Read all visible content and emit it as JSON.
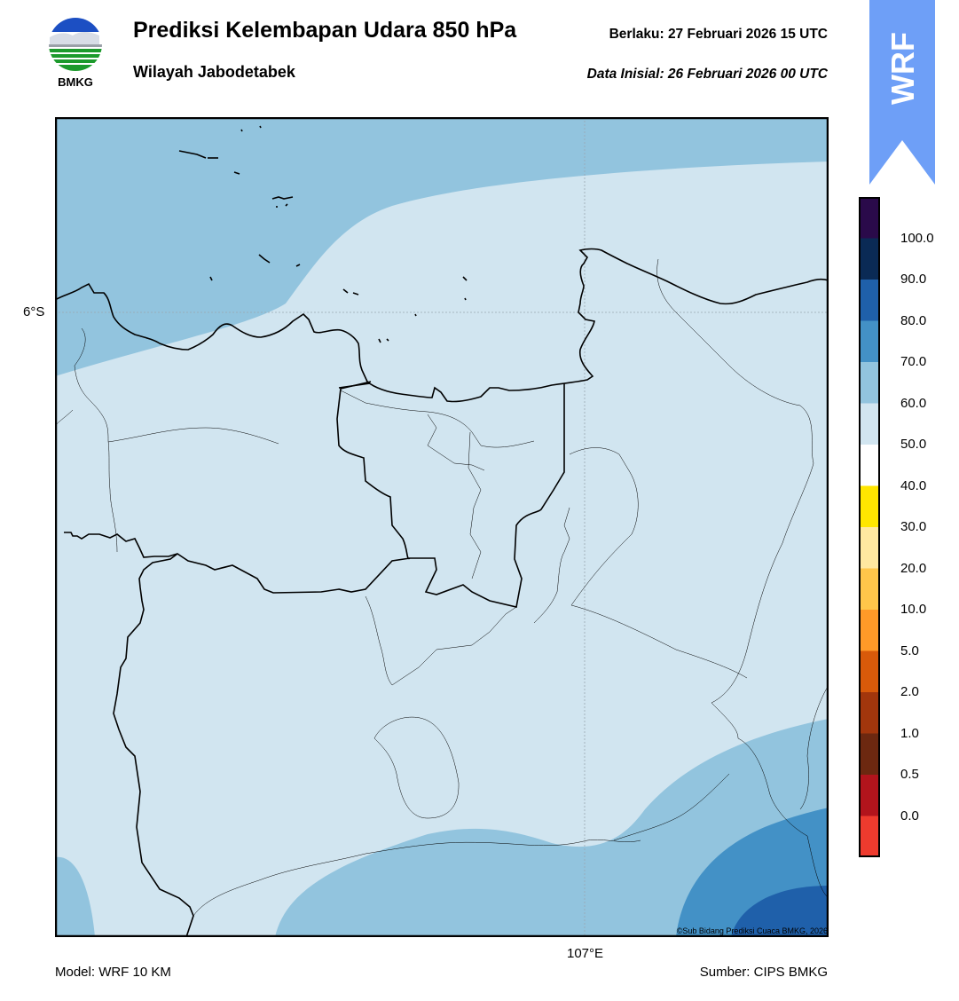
{
  "header": {
    "title": "Prediksi Kelembapan Udara 850 hPa",
    "subtitle": "Wilayah Jabodetabek",
    "valid": "Berlaku:  27 Februari 2026 15 UTC",
    "initial": "Data Inisial:  26 Februari 2026 00 UTC"
  },
  "logo": {
    "text": "BMKG"
  },
  "banner": {
    "text": "WRF",
    "color": "#6e9ff7"
  },
  "map": {
    "lat_label": "6°S",
    "lon_label": "107°E",
    "copyright": "©Sub Bidang Prediksi Cuaca BMKG, 2026"
  },
  "footer": {
    "model": "Model: WRF 10 KM",
    "source": "Sumber: CIPS BMKG"
  },
  "colorbar": {
    "labels": [
      "100.0",
      "90.0",
      "80.0",
      "70.0",
      "60.0",
      "50.0",
      "40.0",
      "30.0",
      "20.0",
      "10.0",
      "5.0",
      "2.0",
      "1.0",
      "0.5",
      "0.0"
    ],
    "colors_top_to_bottom": [
      "#2a0a4a",
      "#0a2a55",
      "#1f60aa",
      "#4391c6",
      "#92c4de",
      "#d1e5f0",
      "#ffffff",
      "#ffe600",
      "#ffe8a0",
      "#ffc64a",
      "#ff9a28",
      "#d85a0a",
      "#a2360c",
      "#6c2810",
      "#b2141c",
      "#ee3b2e"
    ]
  }
}
